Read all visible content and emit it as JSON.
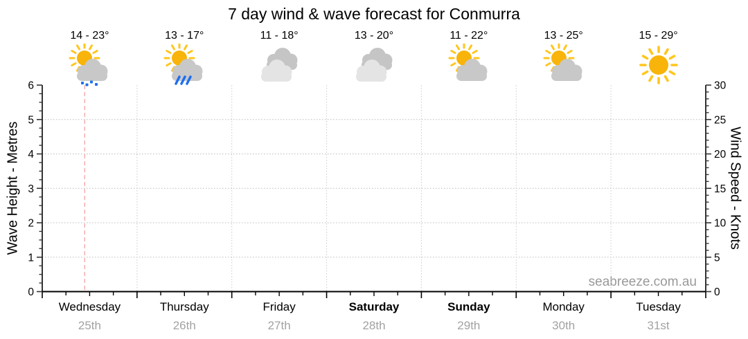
{
  "title": "7 day wind & wave forecast for Conmurra",
  "watermark": "seabreeze.com.au",
  "days": [
    {
      "name": "Wednesday",
      "date": "25th",
      "temp_range": "14 - 23°",
      "icon": "partly-sunny-drizzle",
      "weekend": false
    },
    {
      "name": "Thursday",
      "date": "26th",
      "temp_range": "13 - 17°",
      "icon": "partly-sunny-rain",
      "weekend": false
    },
    {
      "name": "Friday",
      "date": "27th",
      "temp_range": "11 - 18°",
      "icon": "cloudy",
      "weekend": false
    },
    {
      "name": "Saturday",
      "date": "28th",
      "temp_range": "13 - 20°",
      "icon": "cloudy",
      "weekend": true
    },
    {
      "name": "Sunday",
      "date": "29th",
      "temp_range": "11 - 22°",
      "icon": "partly-sunny",
      "weekend": true
    },
    {
      "name": "Monday",
      "date": "30th",
      "temp_range": "13 - 25°",
      "icon": "partly-sunny",
      "weekend": false
    },
    {
      "name": "Tuesday",
      "date": "31st",
      "temp_range": "15 - 29°",
      "icon": "sunny",
      "weekend": false
    }
  ],
  "chart_data": {
    "type": "line",
    "title": "7 day wind & wave forecast for Conmurra",
    "x_categories": [
      "Wednesday 25th",
      "Thursday 26th",
      "Friday 27th",
      "Saturday 28th",
      "Sunday 29th",
      "Monday 30th",
      "Tuesday 31st"
    ],
    "left_axis": {
      "label": "Wave Height - Metres",
      "min": 0,
      "max": 6,
      "major_step": 1,
      "minor_step": 0.25
    },
    "right_axis": {
      "label": "Wind Speed - Knots",
      "min": 0,
      "max": 30,
      "major_step": 5,
      "minor_step": 1
    },
    "series": [],
    "grid": "horizontal dotted at each metre, vertical dotted at day boundaries",
    "now_marker": {
      "day": "Wednesday",
      "x_fraction": 0.064
    }
  },
  "colors": {
    "sun_disc": "#F8B40A",
    "sun_rays": "#FFC61E",
    "cloud_mid": "#C8C8C8",
    "cloud_back": "#C5C5C5",
    "cloud_front": "#E4E4E4",
    "rain_blue": "#1E6EF0",
    "now_line": "#F4A5A0",
    "grid_line": "#B9B9B9",
    "day_separator": "#C9C9C9",
    "axis": "#000000",
    "date_gray": "#A2A2A2",
    "watermark_gray": "#999999"
  }
}
